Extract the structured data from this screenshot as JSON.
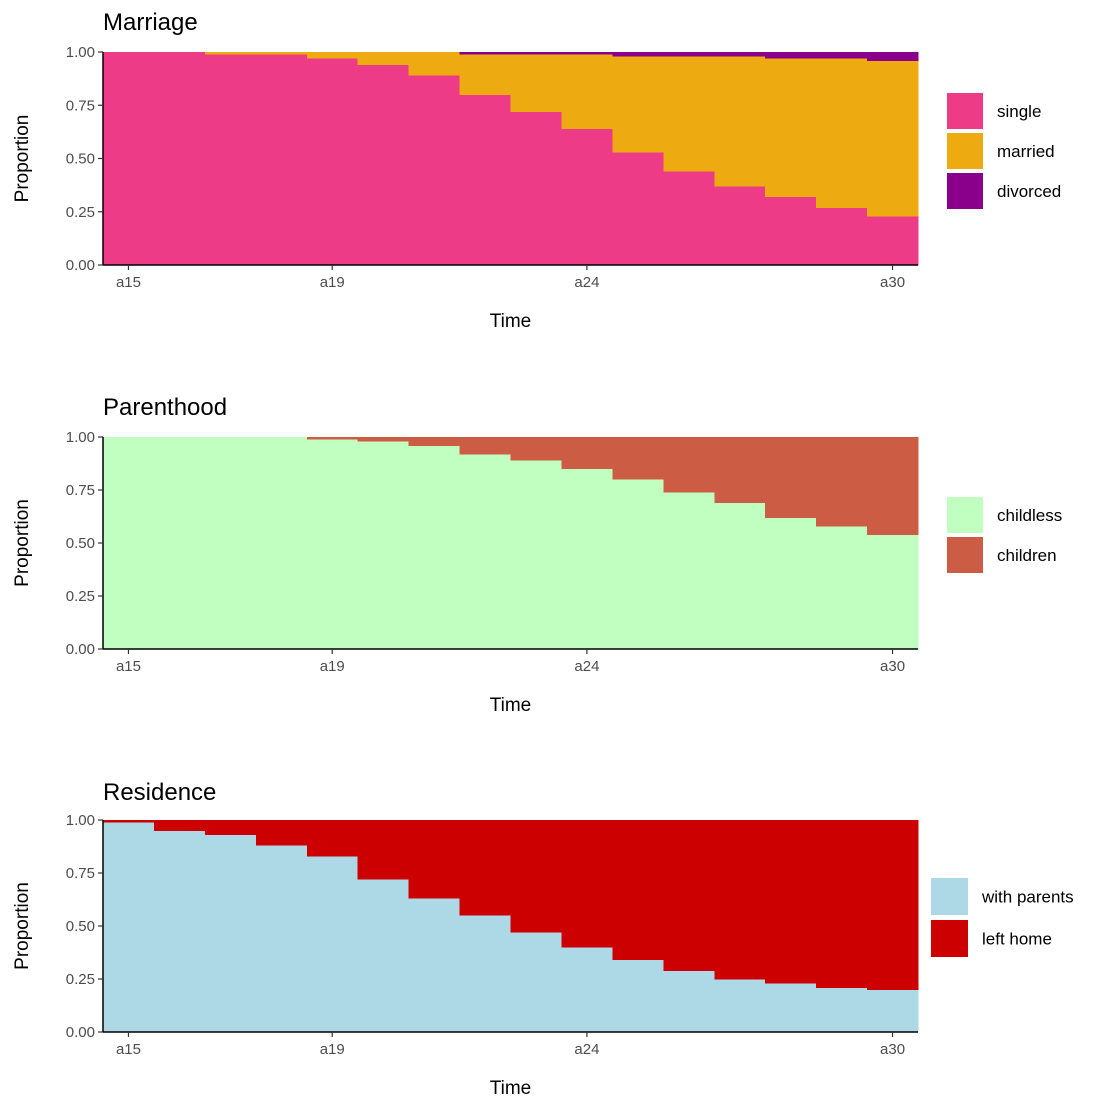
{
  "chart_data": [
    {
      "type": "area",
      "title": "Marriage",
      "xlabel": "Time",
      "ylabel": "Proportion",
      "x": [
        "a15",
        "a16",
        "a17",
        "a18",
        "a19",
        "a20",
        "a21",
        "a22",
        "a23",
        "a24",
        "a25",
        "a26",
        "a27",
        "a28",
        "a29",
        "a30"
      ],
      "x_tick_labels": [
        "a15",
        "a19",
        "a24",
        "a30"
      ],
      "y_ticks": [
        "0.00",
        "0.25",
        "0.50",
        "0.75",
        "1.00"
      ],
      "ylim": [
        0,
        1
      ],
      "grid": false,
      "legend_position": "right",
      "series": [
        {
          "name": "single",
          "color": "#EE3B88",
          "values": [
            1.0,
            1.0,
            0.99,
            0.99,
            0.97,
            0.94,
            0.89,
            0.8,
            0.72,
            0.64,
            0.53,
            0.44,
            0.37,
            0.32,
            0.27,
            0.23
          ]
        },
        {
          "name": "married",
          "color": "#EEAA11",
          "values": [
            0.0,
            0.0,
            0.01,
            0.01,
            0.03,
            0.06,
            0.11,
            0.19,
            0.27,
            0.35,
            0.45,
            0.54,
            0.61,
            0.65,
            0.7,
            0.73
          ]
        },
        {
          "name": "divorced",
          "color": "#8B008B",
          "values": [
            0.0,
            0.0,
            0.0,
            0.0,
            0.0,
            0.0,
            0.0,
            0.01,
            0.01,
            0.01,
            0.02,
            0.02,
            0.02,
            0.03,
            0.03,
            0.04
          ]
        }
      ]
    },
    {
      "type": "area",
      "title": "Parenthood",
      "xlabel": "Time",
      "ylabel": "Proportion",
      "x": [
        "a15",
        "a16",
        "a17",
        "a18",
        "a19",
        "a20",
        "a21",
        "a22",
        "a23",
        "a24",
        "a25",
        "a26",
        "a27",
        "a28",
        "a29",
        "a30"
      ],
      "x_tick_labels": [
        "a15",
        "a19",
        "a24",
        "a30"
      ],
      "y_ticks": [
        "0.00",
        "0.25",
        "0.50",
        "0.75",
        "1.00"
      ],
      "ylim": [
        0,
        1
      ],
      "grid": false,
      "legend_position": "right",
      "series": [
        {
          "name": "childless",
          "color": "#C1FFC1",
          "values": [
            1.0,
            1.0,
            1.0,
            1.0,
            0.99,
            0.98,
            0.96,
            0.92,
            0.89,
            0.85,
            0.8,
            0.74,
            0.69,
            0.62,
            0.58,
            0.54
          ]
        },
        {
          "name": "children",
          "color": "#CD5C45",
          "values": [
            0.0,
            0.0,
            0.0,
            0.0,
            0.01,
            0.02,
            0.04,
            0.08,
            0.11,
            0.15,
            0.2,
            0.26,
            0.31,
            0.38,
            0.42,
            0.46
          ]
        }
      ]
    },
    {
      "type": "area",
      "title": "Residence",
      "xlabel": "Time",
      "ylabel": "Proportion",
      "x": [
        "a15",
        "a16",
        "a17",
        "a18",
        "a19",
        "a20",
        "a21",
        "a22",
        "a23",
        "a24",
        "a25",
        "a26",
        "a27",
        "a28",
        "a29",
        "a30"
      ],
      "x_tick_labels": [
        "a15",
        "a19",
        "a24",
        "a30"
      ],
      "y_ticks": [
        "0.00",
        "0.25",
        "0.50",
        "0.75",
        "1.00"
      ],
      "ylim": [
        0,
        1
      ],
      "grid": false,
      "legend_position": "right",
      "series": [
        {
          "name": "with parents",
          "color": "#ADD8E6",
          "values": [
            0.99,
            0.95,
            0.93,
            0.88,
            0.83,
            0.72,
            0.63,
            0.55,
            0.47,
            0.4,
            0.34,
            0.29,
            0.25,
            0.23,
            0.21,
            0.2
          ]
        },
        {
          "name": "left home",
          "color": "#CC0000",
          "values": [
            0.01,
            0.05,
            0.07,
            0.12,
            0.17,
            0.28,
            0.37,
            0.45,
            0.53,
            0.6,
            0.66,
            0.71,
            0.75,
            0.77,
            0.79,
            0.8
          ]
        }
      ]
    }
  ]
}
